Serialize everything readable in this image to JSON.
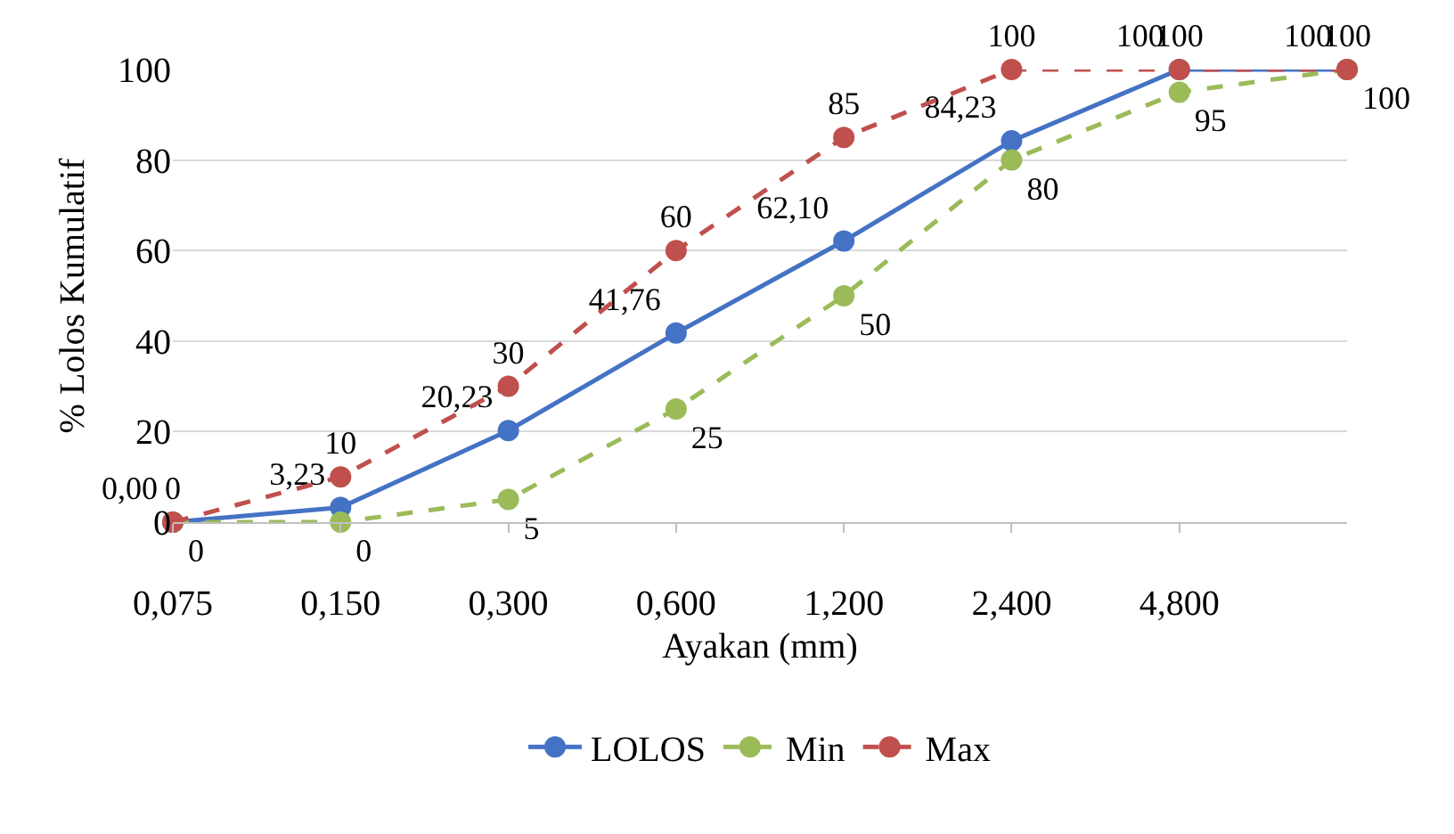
{
  "chart_data": {
    "type": "line",
    "xlabel": "Ayakan (mm)",
    "ylabel": "% Lolos Kumulatif",
    "categories": [
      "0,075",
      "0,150",
      "0,300",
      "0,600",
      "1,200",
      "2,400",
      "4,800",
      null
    ],
    "series": [
      {
        "name": "LOLOS",
        "color": "#4472c4",
        "line_style": "solid",
        "values": [
          0,
          3.23,
          20.23,
          41.76,
          62.1,
          84.23,
          100,
          100
        ],
        "value_labels": [
          "0,00",
          "3,23",
          "20,23",
          "41,76",
          "62,10",
          "84,23",
          "100",
          "100"
        ]
      },
      {
        "name": "Min",
        "color": "#9bbb59",
        "line_style": "dashed",
        "values": [
          0,
          0,
          5,
          25,
          50,
          80,
          95,
          100
        ],
        "value_labels": [
          "0",
          "0",
          "5",
          "25",
          "50",
          "80",
          "95",
          "100"
        ]
      },
      {
        "name": "Max",
        "color": "#c0504d",
        "line_style": "dashed",
        "values": [
          0,
          10,
          30,
          60,
          85,
          100,
          100,
          100
        ],
        "value_labels": [
          "0",
          "10",
          "30",
          "60",
          "85",
          "100",
          "100",
          "100"
        ]
      }
    ],
    "ylim": [
      0,
      100
    ],
    "yticks": [
      0,
      20,
      40,
      60,
      80,
      100
    ],
    "grid": "y",
    "legend": "bottom",
    "marker": "circle"
  }
}
